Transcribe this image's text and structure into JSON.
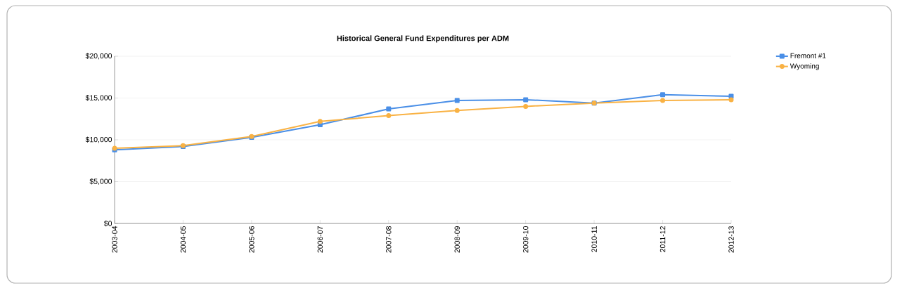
{
  "chart_data": {
    "type": "line",
    "title": "Historical General Fund Expenditures per ADM",
    "categories": [
      "2003-04",
      "2004-05",
      "2005-06",
      "2006-07",
      "2007-08",
      "2008-09",
      "2009-10",
      "2010-11",
      "2011-12",
      "2012-13"
    ],
    "series": [
      {
        "name": "Fremont #1",
        "color": "#4a8fe7",
        "marker": "square",
        "values": [
          8800,
          9200,
          10300,
          11800,
          13700,
          14700,
          14800,
          14400,
          15400,
          15200
        ]
      },
      {
        "name": "Wyoming",
        "color": "#f9b244",
        "marker": "circle",
        "values": [
          9000,
          9300,
          10400,
          12200,
          12900,
          13500,
          14000,
          14400,
          14700,
          14800
        ]
      }
    ],
    "ylim": [
      0,
      20000
    ],
    "yticks": [
      {
        "value": 0,
        "label": "$0"
      },
      {
        "value": 5000,
        "label": "$5,000"
      },
      {
        "value": 10000,
        "label": "$10,000"
      },
      {
        "value": 15000,
        "label": "$15,000"
      },
      {
        "value": 20000,
        "label": "$20,000"
      }
    ],
    "grid": "y",
    "legend": "top right",
    "line_style": "solid"
  }
}
